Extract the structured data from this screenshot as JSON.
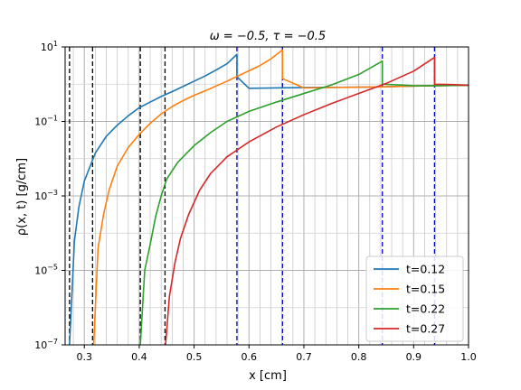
{
  "chart_data": {
    "type": "line",
    "title": "ω = −0.5, τ = −0.5",
    "xlabel": "x [cm]",
    "ylabel": "ρ(x, t) [g/cm]",
    "xlim": [
      0.265,
      1.0
    ],
    "ylim_log10": [
      -7,
      1
    ],
    "yscale": "log",
    "grid": true,
    "legend_position": "lower-right",
    "x_ticks": [
      0.3,
      0.4,
      0.5,
      0.6,
      0.7,
      0.8,
      0.9,
      1.0
    ],
    "x_tick_labels": [
      "0.3",
      "0.4",
      "0.5",
      "0.6",
      "0.7",
      "0.8",
      "0.9",
      "1.0"
    ],
    "y_ticks_log10": [
      1,
      -1,
      -3,
      -5,
      -7
    ],
    "y_tick_base": "10",
    "y_tick_exponents": [
      "1",
      "−1",
      "−3",
      "−5",
      "−7"
    ],
    "minor_x_grid": [
      0.28,
      0.32,
      0.34,
      0.36,
      0.38,
      0.42,
      0.44,
      0.46,
      0.48,
      0.52,
      0.54,
      0.56,
      0.58,
      0.62,
      0.64,
      0.66,
      0.68,
      0.72,
      0.74,
      0.76,
      0.78,
      0.82,
      0.84,
      0.86,
      0.88,
      0.92,
      0.94,
      0.96,
      0.98
    ],
    "black_dashed_lines_x": [
      0.273,
      0.315,
      0.402,
      0.447
    ],
    "blue_dashed_lines_x": [
      0.578,
      0.661,
      0.843,
      0.938
    ],
    "series": [
      {
        "name": "t=0.12",
        "color": "#1f77b4",
        "points": [
          [
            0.273,
            -7.0
          ],
          [
            0.282,
            -4.2
          ],
          [
            0.29,
            -3.3
          ],
          [
            0.3,
            -2.6
          ],
          [
            0.32,
            -1.85
          ],
          [
            0.34,
            -1.4
          ],
          [
            0.36,
            -1.1
          ],
          [
            0.38,
            -0.85
          ],
          [
            0.4,
            -0.63
          ],
          [
            0.42,
            -0.48
          ],
          [
            0.44,
            -0.33
          ],
          [
            0.46,
            -0.2
          ],
          [
            0.48,
            -0.06
          ],
          [
            0.5,
            0.08
          ],
          [
            0.52,
            0.22
          ],
          [
            0.54,
            0.38
          ],
          [
            0.56,
            0.55
          ],
          [
            0.578,
            0.8
          ],
          [
            0.578,
            0.2
          ],
          [
            0.6,
            -0.11
          ],
          [
            0.7,
            -0.09
          ],
          [
            0.8,
            -0.08
          ],
          [
            0.843,
            -0.07
          ],
          [
            0.9,
            -0.05
          ],
          [
            0.938,
            -0.04
          ],
          [
            1.0,
            -0.03
          ]
        ]
      },
      {
        "name": "t=0.15",
        "color": "#ff7f0e",
        "points": [
          [
            0.317,
            -7.0
          ],
          [
            0.325,
            -4.4
          ],
          [
            0.335,
            -3.5
          ],
          [
            0.345,
            -2.85
          ],
          [
            0.36,
            -2.2
          ],
          [
            0.38,
            -1.7
          ],
          [
            0.4,
            -1.35
          ],
          [
            0.42,
            -1.05
          ],
          [
            0.44,
            -0.8
          ],
          [
            0.46,
            -0.6
          ],
          [
            0.48,
            -0.44
          ],
          [
            0.5,
            -0.3
          ],
          [
            0.52,
            -0.18
          ],
          [
            0.54,
            -0.05
          ],
          [
            0.56,
            0.08
          ],
          [
            0.58,
            0.22
          ],
          [
            0.6,
            0.36
          ],
          [
            0.62,
            0.5
          ],
          [
            0.64,
            0.68
          ],
          [
            0.661,
            0.92
          ],
          [
            0.661,
            0.15
          ],
          [
            0.7,
            -0.1
          ],
          [
            0.8,
            -0.08
          ],
          [
            0.843,
            -0.07
          ],
          [
            0.9,
            -0.05
          ],
          [
            0.938,
            -0.04
          ],
          [
            1.0,
            -0.03
          ]
        ]
      },
      {
        "name": "t=0.22",
        "color": "#2ca02c",
        "points": [
          [
            0.402,
            -7.0
          ],
          [
            0.41,
            -5.0
          ],
          [
            0.42,
            -4.3
          ],
          [
            0.43,
            -3.55
          ],
          [
            0.44,
            -3.0
          ],
          [
            0.45,
            -2.55
          ],
          [
            0.47,
            -2.1
          ],
          [
            0.5,
            -1.65
          ],
          [
            0.53,
            -1.3
          ],
          [
            0.56,
            -1.0
          ],
          [
            0.6,
            -0.73
          ],
          [
            0.65,
            -0.48
          ],
          [
            0.7,
            -0.25
          ],
          [
            0.75,
            -0.02
          ],
          [
            0.8,
            0.26
          ],
          [
            0.843,
            0.62
          ],
          [
            0.843,
            0.0
          ],
          [
            0.9,
            -0.04
          ],
          [
            0.938,
            -0.04
          ],
          [
            1.0,
            -0.03
          ]
        ]
      },
      {
        "name": "t=0.27",
        "color": "#d62728",
        "points": [
          [
            0.448,
            -7.0
          ],
          [
            0.455,
            -5.7
          ],
          [
            0.465,
            -4.8
          ],
          [
            0.475,
            -4.15
          ],
          [
            0.49,
            -3.5
          ],
          [
            0.51,
            -2.85
          ],
          [
            0.53,
            -2.4
          ],
          [
            0.56,
            -1.95
          ],
          [
            0.6,
            -1.55
          ],
          [
            0.65,
            -1.15
          ],
          [
            0.7,
            -0.82
          ],
          [
            0.75,
            -0.52
          ],
          [
            0.8,
            -0.25
          ],
          [
            0.85,
            0.02
          ],
          [
            0.9,
            0.35
          ],
          [
            0.938,
            0.72
          ],
          [
            0.938,
            0.0
          ],
          [
            0.97,
            -0.01
          ],
          [
            1.0,
            -0.03
          ]
        ]
      }
    ]
  }
}
